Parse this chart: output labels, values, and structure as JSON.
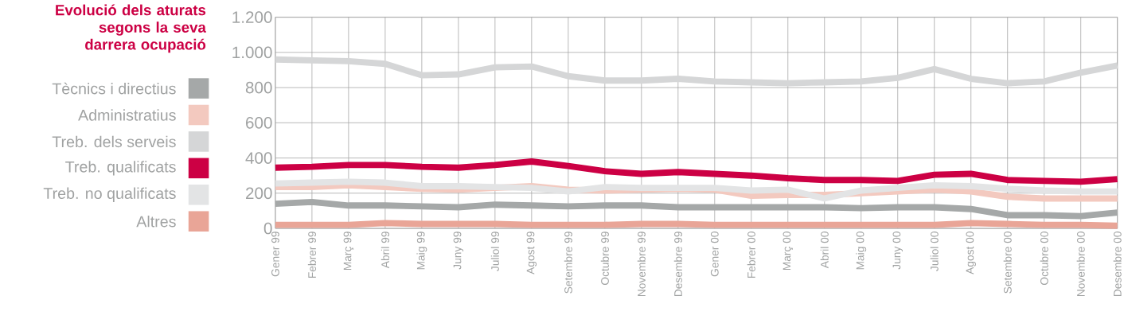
{
  "chart_data": {
    "type": "line",
    "title": "Evolució dels aturats segons la seva darrera ocupació",
    "categories": [
      "Gener 99",
      "Febrer 99",
      "Març 99",
      "Abril 99",
      "Maig 99",
      "Juny 99",
      "Juliol 99",
      "Agost 99",
      "Setembre 99",
      "Octubre 99",
      "Novembre 99",
      "Desembre 99",
      "Gener 00",
      "Febrer 00",
      "Març 00",
      "Abril 00",
      "Maig 00",
      "Juny 00",
      "Juliol 00",
      "Agost 00",
      "Setembre 00",
      "Octubre 00",
      "Novembre 00",
      "Desembre 00"
    ],
    "series": [
      {
        "name": "Tècnics i directius",
        "color": "#a5a8a8",
        "values": [
          140,
          150,
          130,
          130,
          125,
          120,
          135,
          130,
          125,
          130,
          130,
          120,
          120,
          120,
          120,
          120,
          115,
          120,
          120,
          110,
          75,
          75,
          70,
          90
        ]
      },
      {
        "name": "Administratius",
        "color": "#f3c9bf",
        "values": [
          235,
          235,
          245,
          235,
          225,
          220,
          230,
          240,
          220,
          215,
          220,
          225,
          220,
          185,
          190,
          190,
          200,
          210,
          220,
          210,
          180,
          170,
          170,
          170
        ]
      },
      {
        "name": "Treb. dels serveis",
        "color": "#d5d6d7",
        "values": [
          960,
          955,
          950,
          935,
          870,
          875,
          915,
          920,
          865,
          840,
          840,
          850,
          835,
          830,
          825,
          830,
          835,
          855,
          905,
          850,
          825,
          835,
          885,
          925
        ]
      },
      {
        "name": "Treb. qualificats",
        "color": "#cc0044",
        "values": [
          345,
          350,
          360,
          360,
          350,
          345,
          360,
          380,
          355,
          325,
          310,
          320,
          310,
          300,
          285,
          275,
          275,
          270,
          305,
          310,
          275,
          270,
          265,
          280
        ]
      },
      {
        "name": "Treb. no qualificats",
        "color": "#e3e4e5",
        "values": [
          255,
          260,
          265,
          260,
          240,
          240,
          235,
          230,
          210,
          235,
          230,
          230,
          230,
          215,
          220,
          170,
          215,
          230,
          245,
          240,
          225,
          215,
          210,
          210
        ]
      },
      {
        "name": "Altres",
        "color": "#e9a597",
        "values": [
          20,
          20,
          20,
          30,
          25,
          25,
          25,
          20,
          20,
          20,
          25,
          25,
          20,
          20,
          20,
          20,
          20,
          20,
          20,
          30,
          25,
          20,
          20,
          15
        ]
      }
    ],
    "ylim": [
      0,
      1200
    ],
    "yticks": [
      0,
      200,
      400,
      600,
      800,
      {
        "value": 1000,
        "label": "1.000"
      },
      {
        "value": 1200,
        "label": "1.200"
      }
    ],
    "grid": true,
    "legend": "left",
    "marker": "none",
    "line_style": "solid"
  }
}
